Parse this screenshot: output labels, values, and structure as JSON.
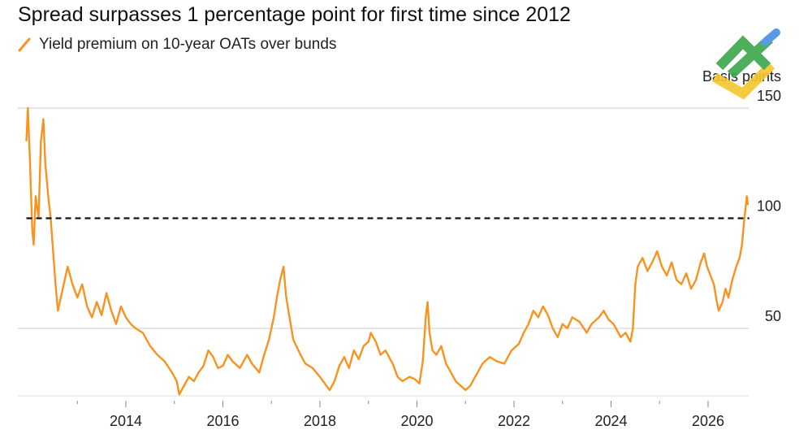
{
  "chart_data": {
    "type": "line",
    "title": "Spread surpasses 1 percentage point for first time since 2012",
    "legend": [
      {
        "label": "Yield premium on 10-year OATs over bunds",
        "color": "#f7931e"
      }
    ],
    "ylabel": "Basis points",
    "ylim": [
      0,
      150
    ],
    "yticks": [
      50,
      100,
      150
    ],
    "xlim": [
      2011.95,
      2026.95
    ],
    "xticks": [
      2014,
      2016,
      2018,
      2020,
      2022,
      2024,
      2026
    ],
    "grid": "horizontal",
    "reference_line": {
      "value": 100,
      "style": "dashed",
      "color": "#111111"
    },
    "series": [
      {
        "color": "#f7931e",
        "points": [
          [
            2011.95,
            135
          ],
          [
            2011.98,
            150
          ],
          [
            2012.02,
            128
          ],
          [
            2012.07,
            95
          ],
          [
            2012.1,
            88
          ],
          [
            2012.14,
            110
          ],
          [
            2012.2,
            100
          ],
          [
            2012.25,
            135
          ],
          [
            2012.3,
            145
          ],
          [
            2012.34,
            125
          ],
          [
            2012.4,
            110
          ],
          [
            2012.45,
            100
          ],
          [
            2012.5,
            85
          ],
          [
            2012.55,
            70
          ],
          [
            2012.6,
            58
          ],
          [
            2012.7,
            68
          ],
          [
            2012.8,
            78
          ],
          [
            2012.9,
            70
          ],
          [
            2013.0,
            64
          ],
          [
            2013.1,
            70
          ],
          [
            2013.2,
            60
          ],
          [
            2013.3,
            55
          ],
          [
            2013.4,
            62
          ],
          [
            2013.5,
            56
          ],
          [
            2013.6,
            66
          ],
          [
            2013.7,
            58
          ],
          [
            2013.8,
            52
          ],
          [
            2013.9,
            60
          ],
          [
            2014.0,
            55
          ],
          [
            2014.1,
            52
          ],
          [
            2014.2,
            50
          ],
          [
            2014.35,
            48
          ],
          [
            2014.5,
            42
          ],
          [
            2014.65,
            38
          ],
          [
            2014.8,
            35
          ],
          [
            2014.95,
            30
          ],
          [
            2015.05,
            26
          ],
          [
            2015.1,
            20
          ],
          [
            2015.2,
            24
          ],
          [
            2015.3,
            28
          ],
          [
            2015.4,
            26
          ],
          [
            2015.5,
            30
          ],
          [
            2015.6,
            33
          ],
          [
            2015.7,
            40
          ],
          [
            2015.8,
            37
          ],
          [
            2015.9,
            32
          ],
          [
            2016.0,
            33
          ],
          [
            2016.1,
            38
          ],
          [
            2016.2,
            35
          ],
          [
            2016.35,
            32
          ],
          [
            2016.5,
            38
          ],
          [
            2016.6,
            34
          ],
          [
            2016.75,
            30
          ],
          [
            2016.85,
            38
          ],
          [
            2016.95,
            45
          ],
          [
            2017.05,
            55
          ],
          [
            2017.12,
            65
          ],
          [
            2017.18,
            72
          ],
          [
            2017.25,
            78
          ],
          [
            2017.3,
            65
          ],
          [
            2017.35,
            58
          ],
          [
            2017.45,
            45
          ],
          [
            2017.6,
            38
          ],
          [
            2017.7,
            34
          ],
          [
            2017.85,
            32
          ],
          [
            2018.0,
            28
          ],
          [
            2018.1,
            25
          ],
          [
            2018.2,
            22
          ],
          [
            2018.3,
            26
          ],
          [
            2018.4,
            33
          ],
          [
            2018.5,
            37
          ],
          [
            2018.6,
            32
          ],
          [
            2018.7,
            40
          ],
          [
            2018.8,
            36
          ],
          [
            2018.9,
            42
          ],
          [
            2019.0,
            44
          ],
          [
            2019.05,
            48
          ],
          [
            2019.15,
            44
          ],
          [
            2019.25,
            38
          ],
          [
            2019.35,
            40
          ],
          [
            2019.5,
            34
          ],
          [
            2019.6,
            28
          ],
          [
            2019.7,
            26
          ],
          [
            2019.85,
            28
          ],
          [
            2019.95,
            27
          ],
          [
            2020.05,
            25
          ],
          [
            2020.12,
            35
          ],
          [
            2020.18,
            55
          ],
          [
            2020.22,
            62
          ],
          [
            2020.26,
            48
          ],
          [
            2020.32,
            40
          ],
          [
            2020.4,
            38
          ],
          [
            2020.5,
            42
          ],
          [
            2020.6,
            34
          ],
          [
            2020.7,
            30
          ],
          [
            2020.8,
            26
          ],
          [
            2020.9,
            24
          ],
          [
            2021.0,
            22
          ],
          [
            2021.1,
            24
          ],
          [
            2021.2,
            28
          ],
          [
            2021.35,
            34
          ],
          [
            2021.5,
            37
          ],
          [
            2021.65,
            35
          ],
          [
            2021.8,
            34
          ],
          [
            2021.95,
            40
          ],
          [
            2022.1,
            43
          ],
          [
            2022.2,
            48
          ],
          [
            2022.3,
            52
          ],
          [
            2022.4,
            58
          ],
          [
            2022.5,
            55
          ],
          [
            2022.6,
            60
          ],
          [
            2022.7,
            56
          ],
          [
            2022.8,
            50
          ],
          [
            2022.9,
            46
          ],
          [
            2023.0,
            52
          ],
          [
            2023.1,
            50
          ],
          [
            2023.2,
            55
          ],
          [
            2023.35,
            53
          ],
          [
            2023.5,
            48
          ],
          [
            2023.6,
            52
          ],
          [
            2023.75,
            55
          ],
          [
            2023.85,
            58
          ],
          [
            2023.95,
            54
          ],
          [
            2024.05,
            52
          ],
          [
            2024.2,
            46
          ],
          [
            2024.3,
            48
          ],
          [
            2024.4,
            44
          ],
          [
            2024.45,
            50
          ],
          [
            2024.5,
            70
          ],
          [
            2024.55,
            78
          ],
          [
            2024.65,
            82
          ],
          [
            2024.75,
            76
          ],
          [
            2024.85,
            80
          ],
          [
            2024.95,
            85
          ],
          [
            2025.05,
            78
          ],
          [
            2025.15,
            74
          ],
          [
            2025.25,
            80
          ],
          [
            2025.35,
            72
          ],
          [
            2025.45,
            70
          ],
          [
            2025.55,
            75
          ],
          [
            2025.65,
            68
          ],
          [
            2025.75,
            72
          ],
          [
            2025.85,
            80
          ],
          [
            2025.92,
            84
          ],
          [
            2025.98,
            78
          ],
          [
            2026.05,
            74
          ],
          [
            2026.12,
            70
          ],
          [
            2026.18,
            62
          ],
          [
            2026.22,
            58
          ],
          [
            2026.3,
            62
          ],
          [
            2026.36,
            68
          ],
          [
            2026.42,
            64
          ],
          [
            2026.5,
            72
          ],
          [
            2026.58,
            78
          ],
          [
            2026.65,
            82
          ],
          [
            2026.7,
            88
          ],
          [
            2026.74,
            98
          ],
          [
            2026.77,
            104
          ],
          [
            2026.8,
            110
          ],
          [
            2026.82,
            106
          ]
        ]
      }
    ]
  }
}
